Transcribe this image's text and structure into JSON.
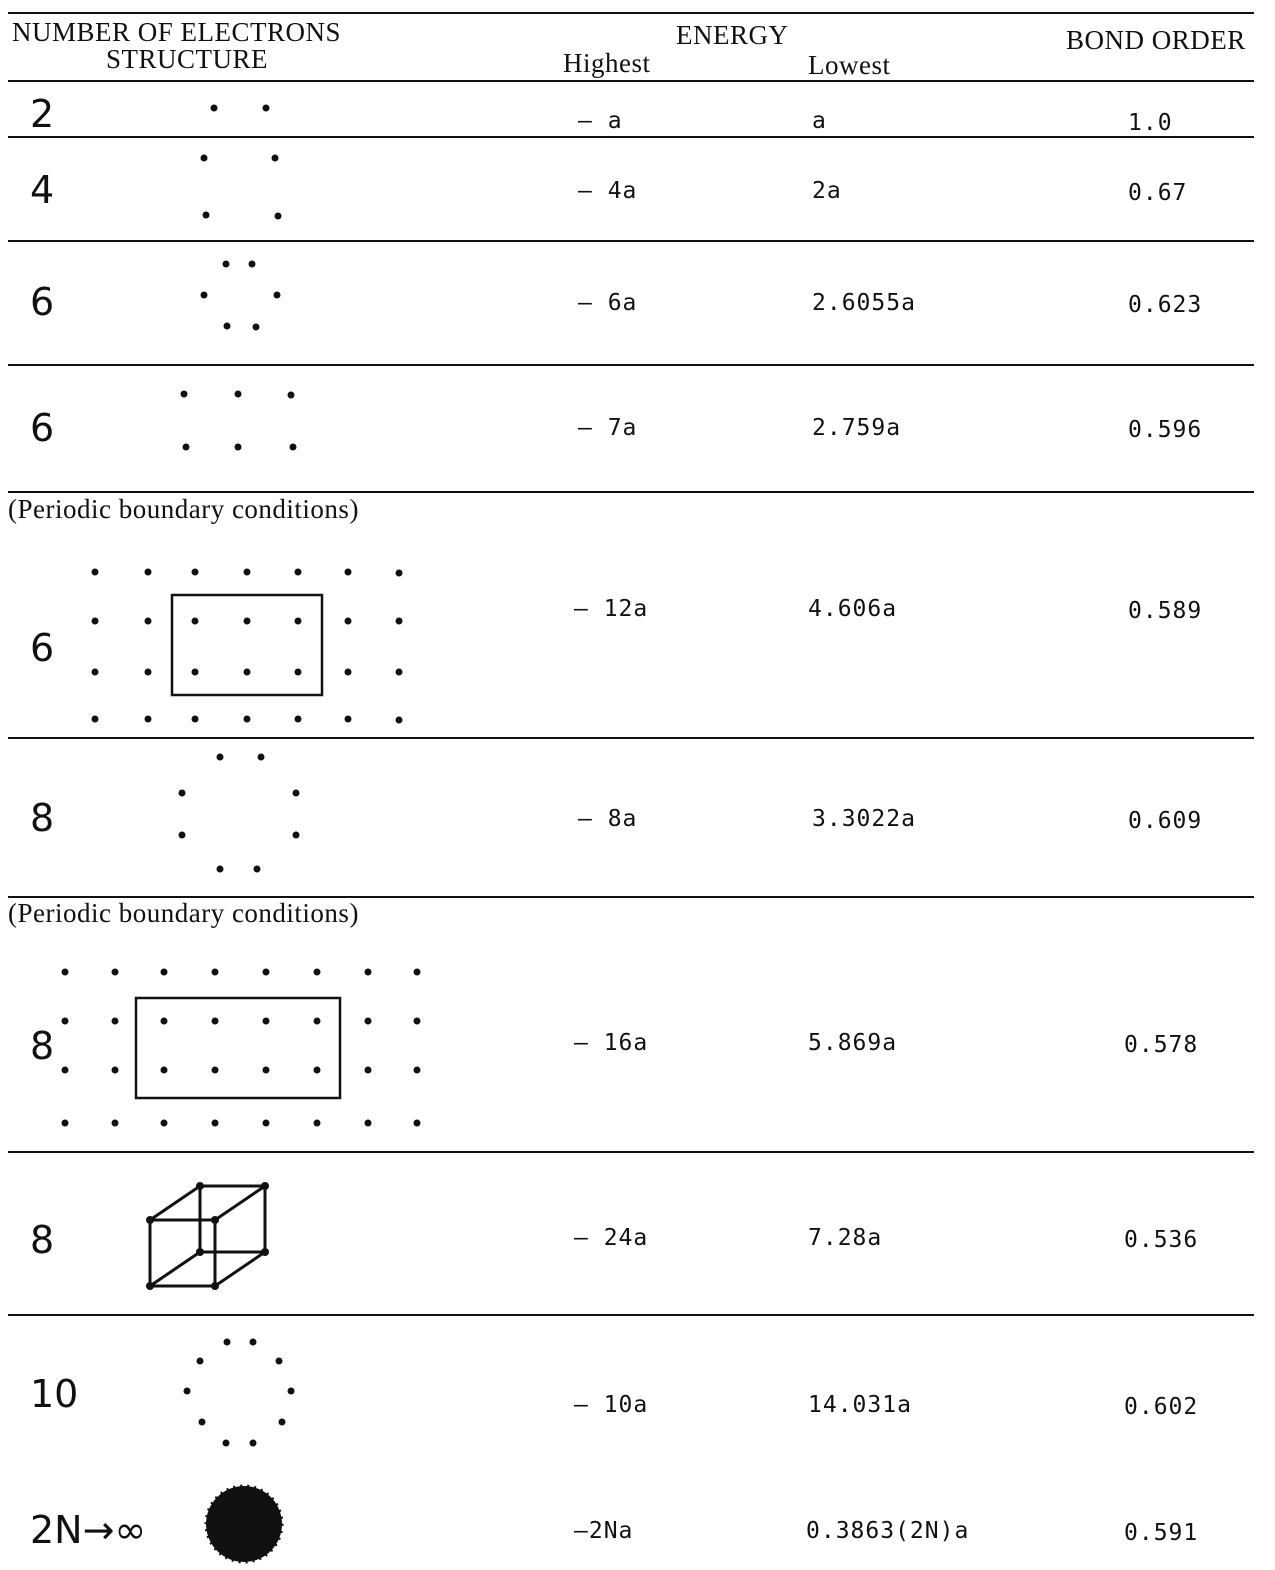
{
  "header": {
    "col1_line1": "NUMBER OF ELECTRONS",
    "col1_line2": "STRUCTURE",
    "energy": "ENERGY",
    "highest": "Highest",
    "lowest": "Lowest",
    "bond_order": "BOND ORDER"
  },
  "rows": [
    {
      "electrons": "2",
      "highest": "— a",
      "lowest": "a",
      "bond_order": "1.0",
      "structure": "pair"
    },
    {
      "electrons": "4",
      "highest": "— 4a",
      "lowest": "2a",
      "bond_order": "0.67",
      "structure": "square-4"
    },
    {
      "electrons": "6",
      "highest": "— 6a",
      "lowest": "2.6055a",
      "bond_order": "0.623",
      "structure": "ring-6"
    },
    {
      "electrons": "6",
      "highest": "— 7a",
      "lowest": "2.759a",
      "bond_order": "0.596",
      "structure": "grid-3x2"
    },
    {
      "note": "(Periodic boundary conditions)",
      "electrons": "6",
      "highest": "— 12a",
      "lowest": "4.606a",
      "bond_order": "0.589",
      "structure": "periodic-7x4"
    },
    {
      "electrons": "8",
      "highest": "— 8a",
      "lowest": "3.3022a",
      "bond_order": "0.609",
      "structure": "ring-8"
    },
    {
      "note": "(Periodic boundary conditions)",
      "electrons": "8",
      "highest": "— 16a",
      "lowest": "5.869a",
      "bond_order": "0.578",
      "structure": "periodic-8x4"
    },
    {
      "electrons": "8",
      "highest": "— 24a",
      "lowest": "7.28a",
      "bond_order": "0.536",
      "structure": "cube"
    },
    {
      "electrons": "10",
      "highest": "— 10a",
      "lowest": "14.031a",
      "bond_order": "0.602",
      "structure": "ring-10"
    },
    {
      "electrons": "2N→∞",
      "highest": "—2Na",
      "lowest": "0.3863(2N)a",
      "bond_order": "0.591",
      "structure": "dotted-circle"
    }
  ]
}
